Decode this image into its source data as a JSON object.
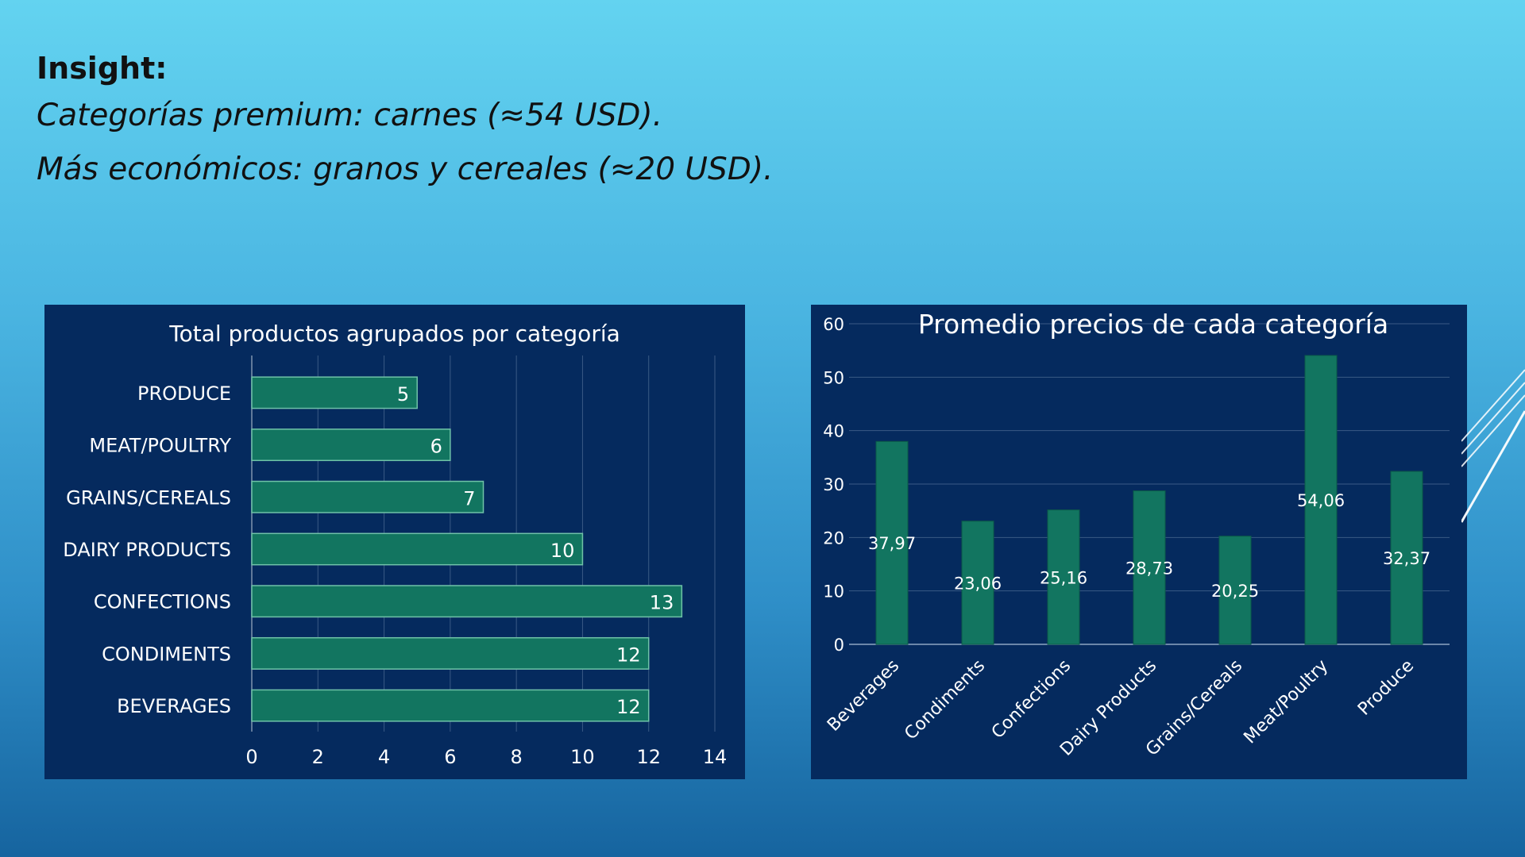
{
  "slide": {
    "heading": "Insight:",
    "lines": [
      "Categorías premium: carnes (≈54 USD).",
      "Más económicos: granos y cereales (≈20 USD)."
    ]
  },
  "colors": {
    "panel": "#052a5e",
    "bar": "#127560",
    "bar_border": "#6fc2a8",
    "grid": "#3a5a85",
    "text": "#ffffff"
  },
  "chart_data": [
    {
      "type": "bar",
      "orientation": "horizontal",
      "title": "Total productos agrupados por categoría",
      "categories": [
        "PRODUCE",
        "MEAT/POULTRY",
        "GRAINS/CEREALS",
        "DAIRY PRODUCTS",
        "CONFECTIONS",
        "CONDIMENTS",
        "BEVERAGES"
      ],
      "values": [
        5,
        6,
        7,
        10,
        13,
        12,
        12
      ],
      "xlim": [
        0,
        14
      ],
      "xticks": [
        0,
        2,
        4,
        6,
        8,
        10,
        12,
        14
      ],
      "grid": true,
      "data_labels": true
    },
    {
      "type": "bar",
      "orientation": "vertical",
      "title": "Promedio precios de cada categoría",
      "categories": [
        "Beverages",
        "Condiments",
        "Confections",
        "Dairy Products",
        "Grains/Cereals",
        "Meat/Poultry",
        "Produce"
      ],
      "values": [
        37.97,
        23.06,
        25.16,
        28.73,
        20.25,
        54.06,
        32.37
      ],
      "value_labels": [
        "37,97",
        "23,06",
        "25,16",
        "28,73",
        "20,25",
        "54,06",
        "32,37"
      ],
      "ylim": [
        0,
        60
      ],
      "yticks": [
        0,
        10,
        20,
        30,
        40,
        50,
        60
      ],
      "grid": true,
      "data_labels": true
    }
  ]
}
